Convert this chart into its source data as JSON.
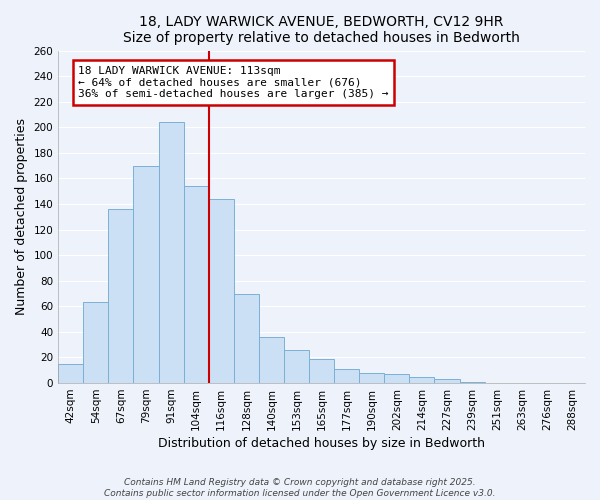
{
  "title": "18, LADY WARWICK AVENUE, BEDWORTH, CV12 9HR",
  "subtitle": "Size of property relative to detached houses in Bedworth",
  "xlabel": "Distribution of detached houses by size in Bedworth",
  "ylabel": "Number of detached properties",
  "bar_labels": [
    "42sqm",
    "54sqm",
    "67sqm",
    "79sqm",
    "91sqm",
    "104sqm",
    "116sqm",
    "128sqm",
    "140sqm",
    "153sqm",
    "165sqm",
    "177sqm",
    "190sqm",
    "202sqm",
    "214sqm",
    "227sqm",
    "239sqm",
    "251sqm",
    "263sqm",
    "276sqm",
    "288sqm"
  ],
  "bar_values": [
    15,
    63,
    136,
    170,
    204,
    154,
    144,
    70,
    36,
    26,
    19,
    11,
    8,
    7,
    5,
    3,
    1,
    0,
    0,
    0,
    0
  ],
  "bar_color": "#cce0f5",
  "bar_edge_color": "#7ab0d4",
  "vline_x": 6.0,
  "vline_color": "#cc0000",
  "annotation_text": "18 LADY WARWICK AVENUE: 113sqm\n← 64% of detached houses are smaller (676)\n36% of semi-detached houses are larger (385) →",
  "annotation_box_color": "#ffffff",
  "annotation_box_edge_color": "#cc0000",
  "ylim": [
    0,
    260
  ],
  "yticks": [
    0,
    20,
    40,
    60,
    80,
    100,
    120,
    140,
    160,
    180,
    200,
    220,
    240,
    260
  ],
  "footer_line1": "Contains HM Land Registry data © Crown copyright and database right 2025.",
  "footer_line2": "Contains public sector information licensed under the Open Government Licence v3.0.",
  "background_color": "#eef2fb",
  "grid_color": "#ffffff",
  "title_fontsize": 10,
  "axis_label_fontsize": 9,
  "tick_fontsize": 7.5,
  "annotation_fontsize": 8,
  "footer_fontsize": 6.5
}
